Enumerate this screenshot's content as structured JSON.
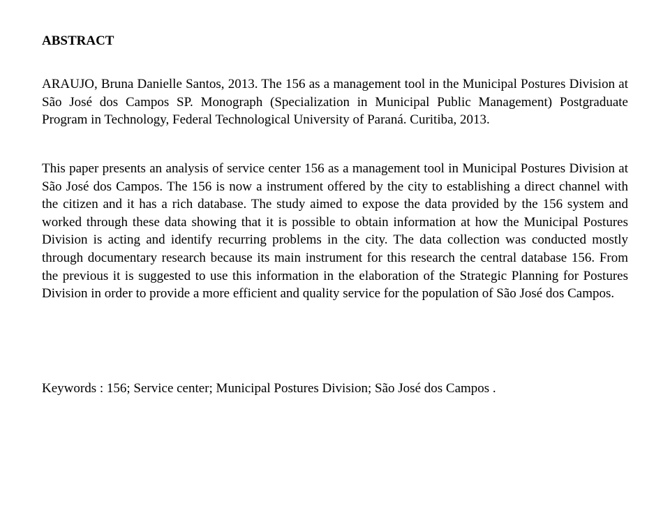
{
  "title": "ABSTRACT",
  "citation": "ARAUJO, Bruna Danielle Santos, 2013. The 156 as a management tool in the Municipal Postures Division at São José dos Campos SP. Monograph (Specialization in Municipal Public Management) Postgraduate Program in Technology, Federal Technological University of Paraná. Curitiba, 2013.",
  "body": "This paper presents an analysis of service center 156 as a management tool in Municipal Postures Division at São José dos Campos. The 156 is now a instrument offered by the city to establishing a direct channel with the citizen and it has a rich database. The study aimed to expose the data provided by the 156 system and worked through these data showing that it is possible to obtain information at how the Municipal Postures Division is acting and identify recurring problems in the city. The data collection was conducted mostly through documentary research because its main instrument for this research the central database 156. From the previous it is suggested to use this information in the elaboration of the Strategic Planning for Postures Division in order to provide a more efficient and quality service for the population of São José dos Campos.",
  "keywords": "Keywords : 156;  Service center;  Municipal Postures Division; São José dos Campos .",
  "colors": {
    "text": "#000000",
    "background": "#ffffff"
  },
  "typography": {
    "font_family": "Times New Roman",
    "title_size_pt": 14,
    "body_size_pt": 14,
    "title_weight": "bold",
    "body_weight": "normal"
  }
}
